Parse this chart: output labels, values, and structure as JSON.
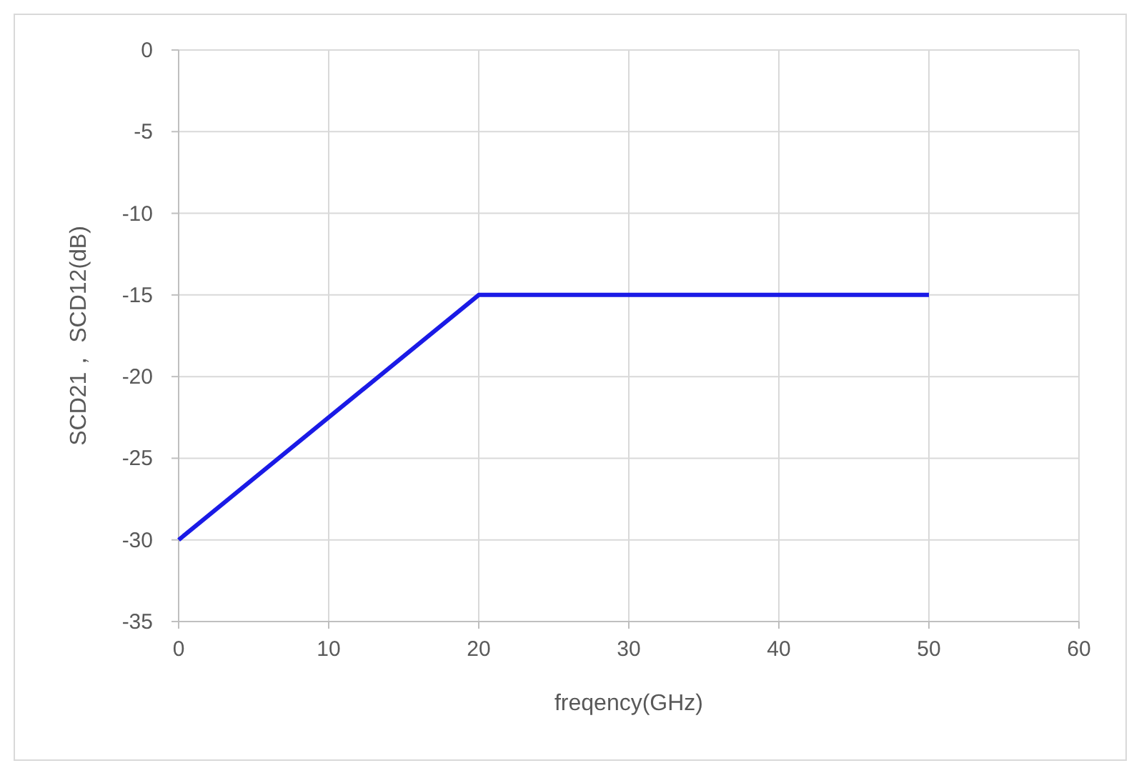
{
  "chart_data": {
    "type": "line",
    "xlabel": "freqency(GHz)",
    "ylabel": "SCD21， SCD12(dB)",
    "x": [
      0,
      20,
      50
    ],
    "series": [
      {
        "color": "#1a1ae6",
        "values": [
          -30,
          -15,
          -15
        ]
      }
    ],
    "xlim": [
      0,
      60
    ],
    "xticks": [
      0,
      10,
      20,
      30,
      40,
      50,
      60
    ],
    "ylim": [
      -35,
      0
    ],
    "yticks": [
      0,
      -5,
      -10,
      -15,
      -20,
      -25,
      -30,
      -35
    ],
    "grid": true,
    "marker": "none",
    "line_style": "solid"
  }
}
